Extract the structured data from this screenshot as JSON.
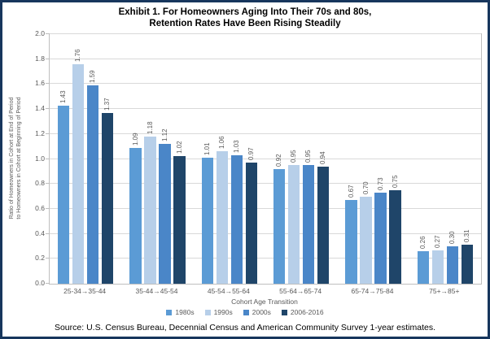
{
  "chart_data": {
    "type": "bar",
    "title_line1": "Exhibit 1. For Homeowners Aging Into Their 70s and 80s,",
    "title_line2": "Retention Rates Have Been Rising Steadily",
    "categories": [
      "25-34→35-44",
      "35-44→45-54",
      "45-54→55-64",
      "55-64→65-74",
      "65-74→75-84",
      "75+→85+"
    ],
    "series": [
      {
        "name": "1980s",
        "color": "#5b9bd5",
        "values": [
          1.43,
          1.09,
          1.01,
          0.92,
          0.67,
          0.26
        ]
      },
      {
        "name": "1990s",
        "color": "#b7cfe9",
        "values": [
          1.76,
          1.18,
          1.06,
          0.95,
          0.7,
          0.27
        ]
      },
      {
        "name": "2000s",
        "color": "#4a86c8",
        "values": [
          1.59,
          1.12,
          1.03,
          0.95,
          0.73,
          0.3
        ]
      },
      {
        "name": "2006-2016",
        "color": "#1f4569",
        "values": [
          1.37,
          1.02,
          0.97,
          0.94,
          0.75,
          0.31
        ]
      }
    ],
    "xlabel": "Cohort Age Transition",
    "ylabel_line1": "Ratio of Homeowners in Cohort at End of Period",
    "ylabel_line2": "to Homeowners in Cohort at Beginning of Period",
    "ylim": [
      0.0,
      2.0
    ],
    "ytick_step": 0.2,
    "grid": "horizontal",
    "legend_position": "bottom",
    "value_label_decimals": 2
  },
  "source_note": "Source: U.S. Census Bureau, Decennial Census and American Community Survey 1-year estimates.",
  "colors": {
    "frame_border": "#17365d",
    "plot_border": "#bfbfbf",
    "gridline": "#d9d9d9",
    "axis_text": "#595959",
    "title_text": "#000000"
  }
}
